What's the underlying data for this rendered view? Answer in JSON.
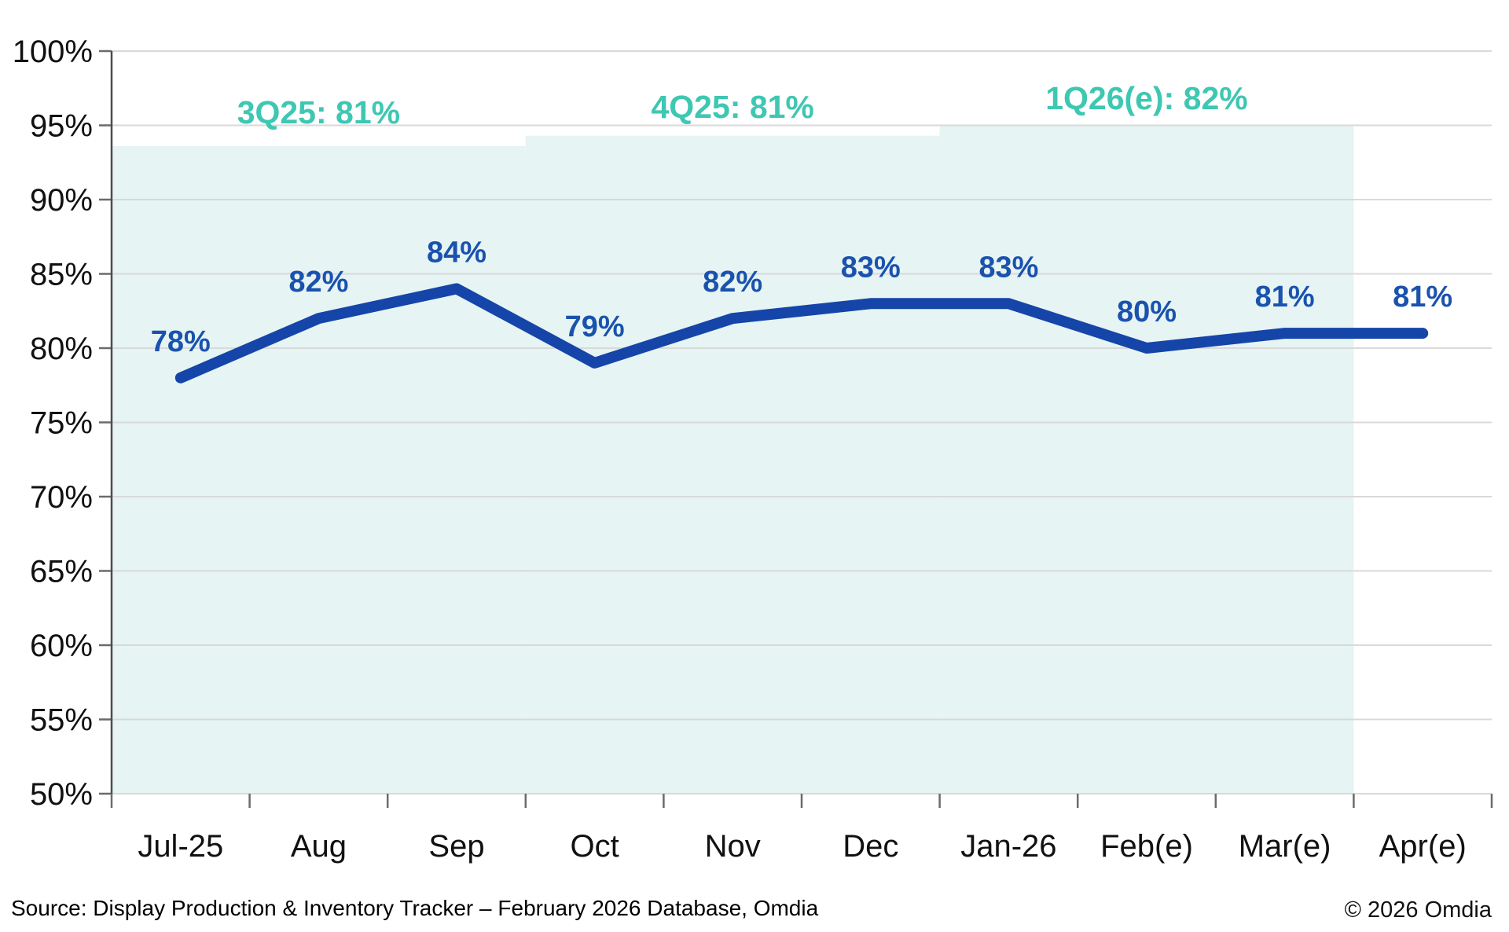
{
  "page": {
    "background_color": "#ffffff"
  },
  "chart_data": {
    "type": "line",
    "title": "",
    "xlabel": "",
    "ylabel": "",
    "categories": [
      "Jul-25",
      "Aug",
      "Sep",
      "Oct",
      "Nov",
      "Dec",
      "Jan-26",
      "Feb(e)",
      "Mar(e)",
      "Apr(e)"
    ],
    "values": [
      78,
      82,
      84,
      79,
      82,
      83,
      83,
      80,
      81,
      81
    ],
    "data_labels": [
      "78%",
      "82%",
      "84%",
      "79%",
      "82%",
      "83%",
      "83%",
      "80%",
      "81%",
      "81%"
    ],
    "unit": "%",
    "ylim": [
      50,
      100
    ],
    "ytick_step": 5,
    "ytick_labels": [
      "100%",
      "95%",
      "90%",
      "85%",
      "80%",
      "75%",
      "70%",
      "65%",
      "60%",
      "55%",
      "50%"
    ],
    "grid": true,
    "legend_position": "none",
    "annotations": [
      {
        "label": "3Q25: 81%",
        "anchor_category": "Aug"
      },
      {
        "label": "4Q25: 81%",
        "anchor_category": "Nov"
      },
      {
        "label": "1Q26(e): 82%",
        "anchor_category": "Feb(e)"
      }
    ],
    "quarter_bands": [
      {
        "from_index": 0,
        "to_index": 3,
        "top_percent": 93.6
      },
      {
        "from_index": 3,
        "to_index": 6,
        "top_percent": 94.3
      },
      {
        "from_index": 6,
        "to_index": 9,
        "top_percent": 95.0
      }
    ],
    "colors": {
      "line": "#1545a8",
      "data_label": "#1a52ae",
      "annotation": "#3ec7b2",
      "band_fill": "#e6f4f3",
      "gridline": "#d9d9d9",
      "axis": "#4d4d4d",
      "tick": "#6b6b6b",
      "tick_label": "#111111"
    }
  },
  "footer": {
    "source": "Source: Display Production & Inventory Tracker – February 2026 Database, Omdia",
    "copyright": "© 2026 Omdia"
  }
}
